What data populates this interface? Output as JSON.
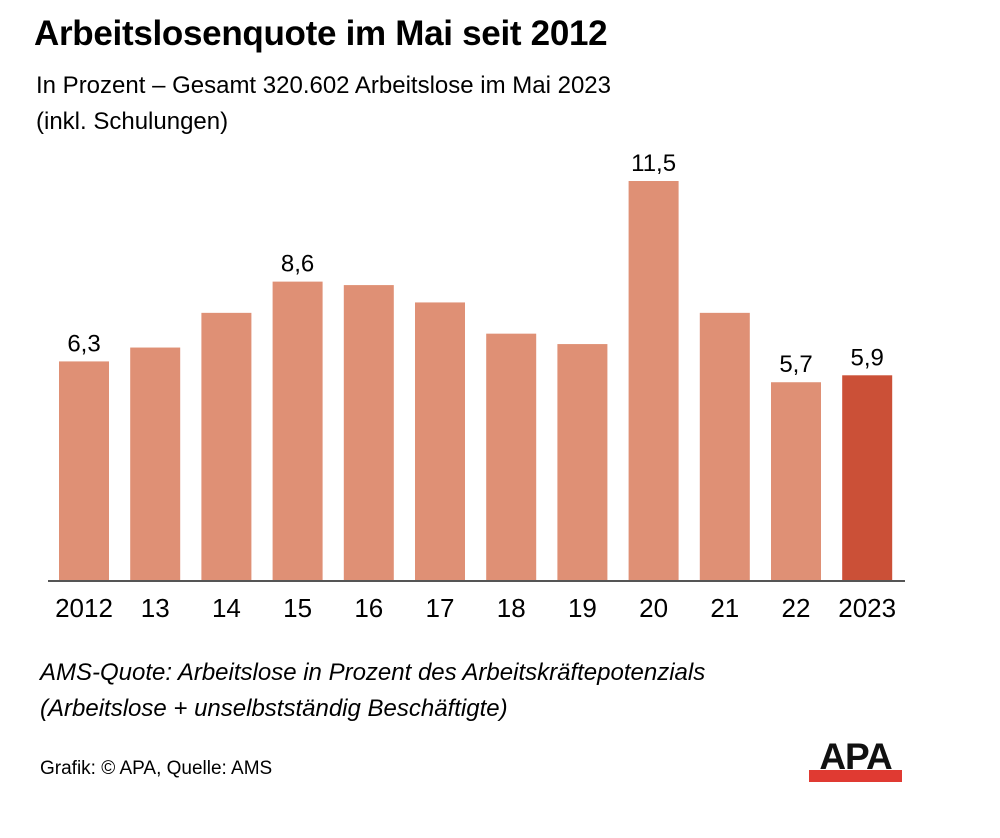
{
  "header": {
    "title": "Arbeitslosenquote im Mai seit 2012",
    "subtitle_line1": "In Prozent – Gesamt 320.602 Arbeitslose im Mai 2023",
    "subtitle_line2": "(inkl. Schulungen)"
  },
  "chart_data": {
    "type": "bar",
    "title": "Arbeitslosenquote im Mai seit 2012",
    "subtitle": "In Prozent – Gesamt 320.602 Arbeitslose im Mai 2023 (inkl. Schulungen)",
    "xlabel": "",
    "ylabel": "Prozent",
    "ylim": [
      0,
      11.5
    ],
    "grid": false,
    "categories": [
      "2012",
      "13",
      "14",
      "15",
      "16",
      "17",
      "18",
      "19",
      "20",
      "21",
      "22",
      "2023"
    ],
    "values": [
      6.3,
      6.7,
      7.7,
      8.6,
      8.5,
      8.0,
      7.1,
      6.8,
      11.5,
      7.7,
      5.7,
      5.9
    ],
    "data_labels": [
      "6,3",
      "",
      "",
      "8,6",
      "",
      "",
      "",
      "",
      "11,5",
      "",
      "5,7",
      "5,9"
    ],
    "highlight_index": 11,
    "colors": {
      "bar": "#df9075",
      "highlight": "#cb5037",
      "axis": "#555555"
    }
  },
  "footer": {
    "note_line1": "AMS-Quote: Arbeitslose in Prozent des Arbeitskräftepotenzials",
    "note_line2": "(Arbeitslose + unselbstständig Beschäftigte)",
    "source": "Grafik: © APA, Quelle: AMS",
    "logo_text": "APA",
    "logo_color": "#e03a32"
  }
}
